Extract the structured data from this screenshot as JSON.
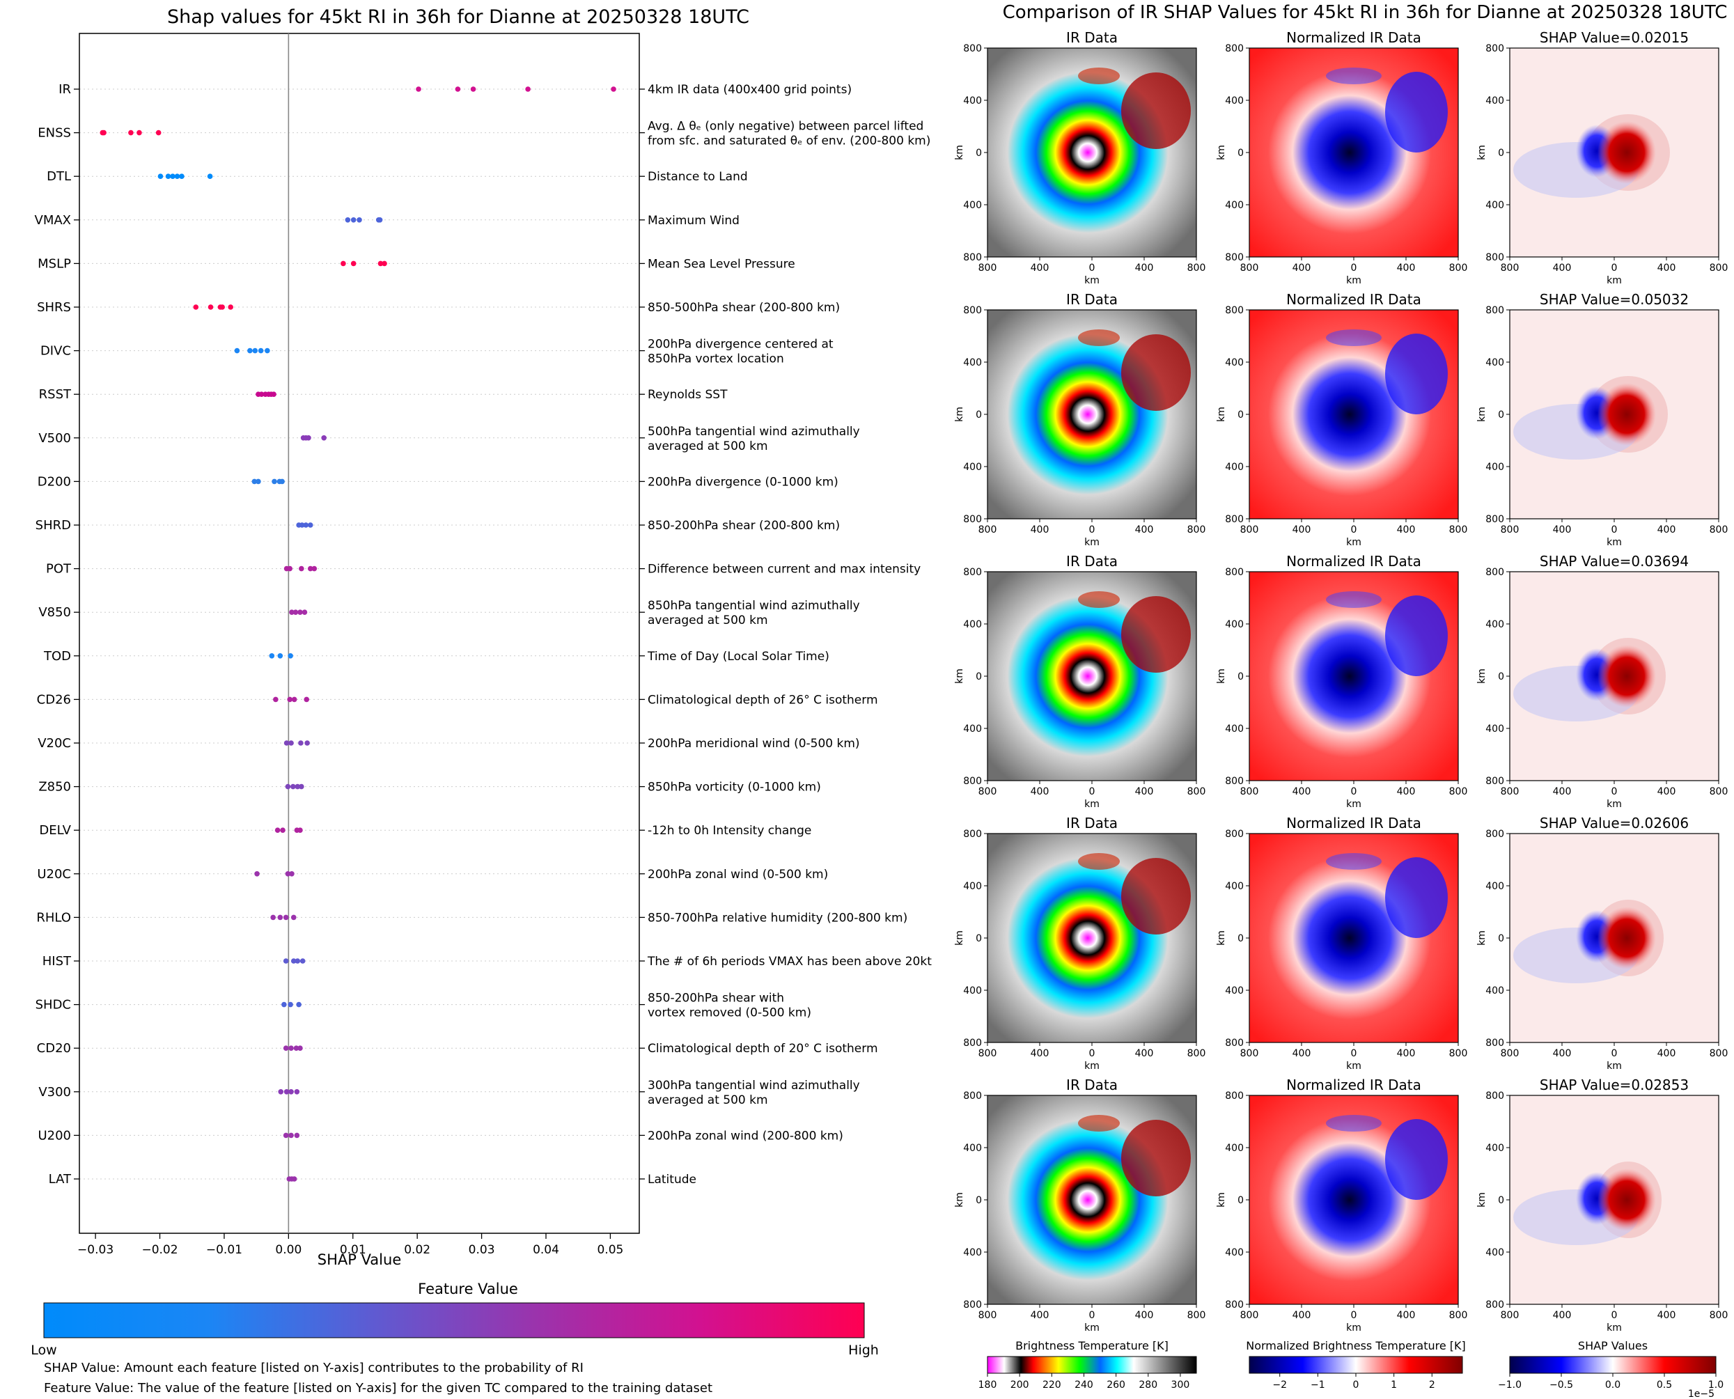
{
  "chart_data": [
    {
      "type": "scatter",
      "title": "Shap values for 45kt RI in 36h for Dianne at 20250328 18UTC",
      "xlabel": "SHAP Value",
      "ylabel": "",
      "xlim": [
        -0.0325,
        0.0545
      ],
      "xticks": [
        -0.03,
        -0.02,
        -0.01,
        0.0,
        0.01,
        0.02,
        0.03,
        0.04,
        0.05
      ],
      "xtick_labels": [
        "−0.03",
        "−0.02",
        "−0.01",
        "0.00",
        "0.01",
        "0.02",
        "0.03",
        "0.04",
        "0.05"
      ],
      "grid": "horizontal dotted per feature",
      "zero_line": 0.0,
      "colormap": [
        "#008bfb",
        "#2d7fe8",
        "#6f55c8",
        "#a62ea8",
        "#d21190",
        "#ff0052"
      ],
      "features": [
        {
          "name": "IR",
          "desc": "4km IR data (400x400 grid points)",
          "desc2": "",
          "color": "#d21190",
          "values": [
            0.0202,
            0.0263,
            0.0287,
            0.0372,
            0.0505
          ]
        },
        {
          "name": "ENSS",
          "desc": "Avg. Δ θₑ (only negative) between parcel lifted",
          "desc2": "from sfc. and saturated θₑ of env. (200-800 km)",
          "color": "#ff0052",
          "values": [
            -0.0289,
            -0.0287,
            -0.0245,
            -0.0232,
            -0.0202
          ]
        },
        {
          "name": "DTL",
          "desc": "Distance to Land",
          "desc2": "",
          "color": "#008bfb",
          "values": [
            -0.0199,
            -0.0187,
            -0.018,
            -0.0173,
            -0.0166,
            -0.0122
          ]
        },
        {
          "name": "VMAX",
          "desc": "Maximum Wind",
          "desc2": "",
          "color": "#4d64da",
          "values": [
            0.0092,
            0.0101,
            0.011,
            0.014,
            0.0142
          ]
        },
        {
          "name": "MSLP",
          "desc": "Mean Sea Level Pressure",
          "desc2": "",
          "color": "#ff0052",
          "values": [
            0.0085,
            0.0101,
            0.0143,
            0.0149
          ]
        },
        {
          "name": "SHRS",
          "desc": "850-500hPa shear (200-800 km)",
          "desc2": "",
          "color": "#ff0052",
          "values": [
            -0.0144,
            -0.0121,
            -0.0106,
            -0.0103,
            -0.009
          ]
        },
        {
          "name": "DIVC",
          "desc": "200hPa divergence centered at",
          "desc2": "850hPa vortex location",
          "color": "#1b86f5",
          "values": [
            -0.008,
            -0.006,
            -0.0052,
            -0.0043,
            -0.0033
          ]
        },
        {
          "name": "RSST",
          "desc": "Reynolds SST",
          "desc2": "",
          "color": "#c7098f",
          "values": [
            -0.0047,
            -0.0042,
            -0.0036,
            -0.0031,
            -0.0027,
            -0.0023
          ]
        },
        {
          "name": "V500",
          "desc": "500hPa tangential wind azimuthally",
          "desc2": "averaged at 500 km",
          "color": "#8a3cb8",
          "values": [
            0.0023,
            0.0027,
            0.0031,
            0.0055
          ]
        },
        {
          "name": "D200",
          "desc": "200hPa divergence (0-1000 km)",
          "desc2": "",
          "color": "#2d7fe8",
          "values": [
            -0.0053,
            -0.0047,
            -0.0022,
            -0.0014,
            -0.001
          ]
        },
        {
          "name": "SHRD",
          "desc": "850-200hPa shear (200-800 km)",
          "desc2": "",
          "color": "#4d64da",
          "values": [
            0.0016,
            0.0021,
            0.0027,
            0.0034
          ]
        },
        {
          "name": "POT",
          "desc": "Difference between current and max intensity",
          "desc2": "",
          "color": "#b0239f",
          "values": [
            -0.0003,
            0.0002,
            0.002,
            0.0034,
            0.004
          ]
        },
        {
          "name": "V850",
          "desc": "850hPa tangential wind azimuthally",
          "desc2": "averaged at 500 km",
          "color": "#a62ea8",
          "values": [
            0.0005,
            0.0011,
            0.0018,
            0.0025
          ]
        },
        {
          "name": "TOD",
          "desc": "Time of Day (Local Solar Time)",
          "desc2": "",
          "color": "#1b86f5",
          "values": [
            -0.0026,
            -0.0013,
            0.0003
          ]
        },
        {
          "name": "CD26",
          "desc": "Climatological depth of 26° C isotherm",
          "desc2": "",
          "color": "#b0239f",
          "values": [
            -0.002,
            0.0002,
            0.0009,
            0.0028
          ]
        },
        {
          "name": "V20C",
          "desc": "200hPa meridional wind (0-500 km)",
          "desc2": "",
          "color": "#7e46bc",
          "values": [
            -0.0003,
            0.0004,
            0.0019,
            0.0029
          ]
        },
        {
          "name": "Z850",
          "desc": "850hPa vorticity (0-1000 km)",
          "desc2": "",
          "color": "#7e46bc",
          "values": [
            -0.0001,
            0.0007,
            0.0014,
            0.002
          ]
        },
        {
          "name": "DELV",
          "desc": "-12h to 0h Intensity change",
          "desc2": "",
          "color": "#b0239f",
          "values": [
            -0.0017,
            -0.0009,
            0.0013,
            0.0018
          ]
        },
        {
          "name": "U20C",
          "desc": "200hPa zonal wind (0-500 km)",
          "desc2": "",
          "color": "#9b33ac",
          "values": [
            -0.0049,
            -0.0001,
            0.0005
          ]
        },
        {
          "name": "RHLO",
          "desc": "850-700hPa relative humidity (200-800 km)",
          "desc2": "",
          "color": "#9b33ac",
          "values": [
            -0.0024,
            -0.0013,
            -0.0004,
            0.0008
          ]
        },
        {
          "name": "HIST",
          "desc": "The # of 6h periods VMAX has been above 20kt",
          "desc2": "",
          "color": "#5e5bd2",
          "values": [
            -0.0004,
            0.0008,
            0.0014,
            0.0022
          ]
        },
        {
          "name": "SHDC",
          "desc": "850-200hPa shear with",
          "desc2": "vortex removed (0-500 km)",
          "color": "#4d64da",
          "values": [
            -0.0007,
            0.0003,
            0.0016
          ]
        },
        {
          "name": "CD20",
          "desc": "Climatological depth of 20° C isotherm",
          "desc2": "",
          "color": "#9b33ac",
          "values": [
            -0.0004,
            0.0004,
            0.0012,
            0.0018
          ]
        },
        {
          "name": "V300",
          "desc": "300hPa tangential wind azimuthally",
          "desc2": "averaged at 500 km",
          "color": "#8a3cb8",
          "values": [
            -0.0012,
            -0.0003,
            0.0004,
            0.0013
          ]
        },
        {
          "name": "U200",
          "desc": "200hPa zonal wind (200-800 km)",
          "desc2": "",
          "color": "#9b33ac",
          "values": [
            -0.0004,
            0.0004,
            0.0013
          ]
        },
        {
          "name": "LAT",
          "desc": "Latitude",
          "desc2": "",
          "color": "#9b33ac",
          "values": [
            0.0001,
            0.0005,
            0.0009
          ]
        }
      ],
      "colorbar": {
        "title": "Feature Value",
        "low_label": "Low",
        "high_label": "High",
        "colors": [
          "#008bfb",
          "#1b86f5",
          "#5e5bd2",
          "#9b33ac",
          "#d21190",
          "#ff0052"
        ]
      }
    },
    {
      "type": "heatmap",
      "title": "Comparison of IR SHAP Values for 45kt RI in 36h for Dianne at 20250328 18UTC",
      "xlabel": "km",
      "ylabel": "km",
      "tick_labels": [
        "800",
        "400",
        "0",
        "400",
        "800"
      ],
      "columns": [
        "IR Data",
        "Normalized IR Data",
        "SHAP Value"
      ],
      "rows": [
        {
          "ir_title": "IR Data",
          "norm_title": "Normalized IR Data",
          "shap_title": "SHAP Value=0.02015",
          "shap_value": 0.02015
        },
        {
          "ir_title": "IR Data",
          "norm_title": "Normalized IR Data",
          "shap_title": "SHAP Value=0.05032",
          "shap_value": 0.05032
        },
        {
          "ir_title": "IR Data",
          "norm_title": "Normalized IR Data",
          "shap_title": "SHAP Value=0.03694",
          "shap_value": 0.03694
        },
        {
          "ir_title": "IR Data",
          "norm_title": "Normalized IR Data",
          "shap_title": "SHAP Value=0.02606",
          "shap_value": 0.02606
        },
        {
          "ir_title": "IR Data",
          "norm_title": "Normalized IR Data",
          "shap_title": "SHAP Value=0.02853",
          "shap_value": 0.02853
        }
      ],
      "colorbars": [
        {
          "label": "Brightness Temperature [K]",
          "ticks": [
            "180",
            "200",
            "220",
            "240",
            "260",
            "280",
            "300"
          ],
          "range": [
            180,
            310
          ]
        },
        {
          "label": "Normalized Brightness Temperature [K]",
          "ticks": [
            "−2",
            "−1",
            "0",
            "1",
            "2"
          ],
          "range": [
            -2.8,
            2.8
          ]
        },
        {
          "label": "SHAP Values",
          "ticks": [
            "−1.0",
            "−0.5",
            "0.0",
            "0.5",
            "1.0"
          ],
          "range": [
            -1.0,
            1.0
          ],
          "offset_label": "1e−5"
        }
      ]
    }
  ],
  "footnotes": {
    "shap_note": "SHAP Value: Amount each feature [listed on Y-axis] contributes to the probability of RI",
    "feature_note": "Feature Value: The value of the feature [listed on Y-axis] for the given TC compared to the training dataset"
  }
}
